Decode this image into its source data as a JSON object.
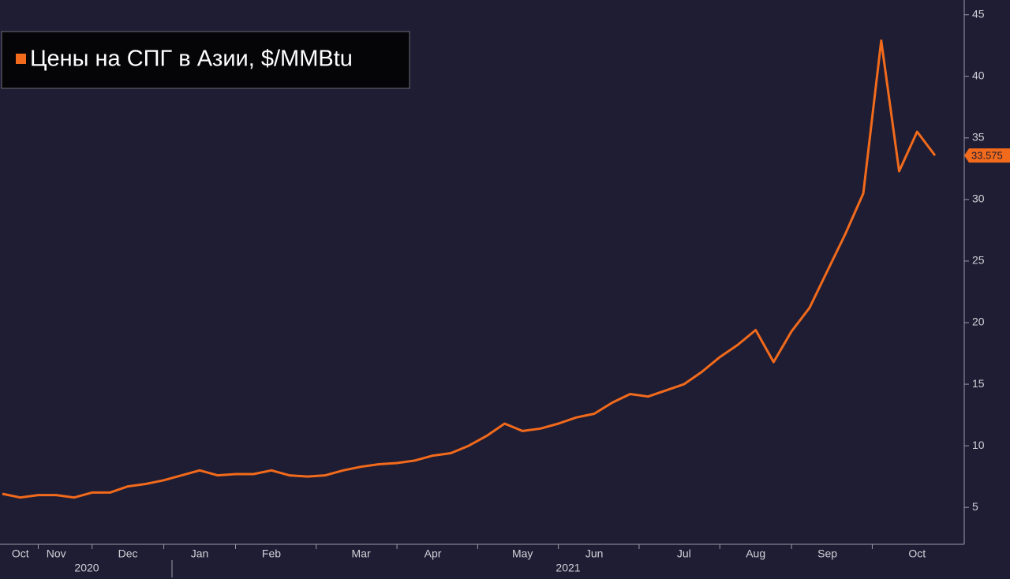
{
  "chart_data": {
    "type": "line",
    "categories": [
      null,
      "Oct",
      null,
      "Nov",
      null,
      null,
      null,
      "Dec",
      null,
      null,
      null,
      "Jan",
      null,
      null,
      null,
      "Feb",
      null,
      null,
      null,
      null,
      "Mar",
      null,
      null,
      null,
      "Apr",
      null,
      null,
      null,
      null,
      "May",
      null,
      null,
      null,
      "Jun",
      null,
      null,
      null,
      null,
      "Jul",
      null,
      null,
      null,
      "Aug",
      null,
      null,
      null,
      "Sep",
      null,
      null,
      null,
      null,
      "Oct",
      null
    ],
    "year_labels": [
      "2020",
      "2021"
    ],
    "series": [
      {
        "name": "Цены на СПГ в Азии, $/MMBtu",
        "color": "#f26a1b",
        "values": [
          6.1,
          5.8,
          6.0,
          6.0,
          5.8,
          6.2,
          6.2,
          6.7,
          6.9,
          7.2,
          7.6,
          8.0,
          7.6,
          7.7,
          7.7,
          8.0,
          7.6,
          7.5,
          7.6,
          8.0,
          8.3,
          8.5,
          8.6,
          8.8,
          9.2,
          9.4,
          10.0,
          10.8,
          11.8,
          11.2,
          11.4,
          11.8,
          12.3,
          12.6,
          13.5,
          14.2,
          14.0,
          14.5,
          15.0,
          16.0,
          17.2,
          18.2,
          19.4,
          16.8,
          19.3,
          21.2,
          24.2,
          27.2,
          30.5,
          42.9,
          32.3,
          35.5,
          33.575
        ]
      }
    ],
    "ylim": [
      2,
      46.2
    ],
    "yticks": [
      5,
      10,
      15,
      20,
      25,
      30,
      35,
      40,
      45
    ],
    "axis_side": "right",
    "grid": false
  }
}
